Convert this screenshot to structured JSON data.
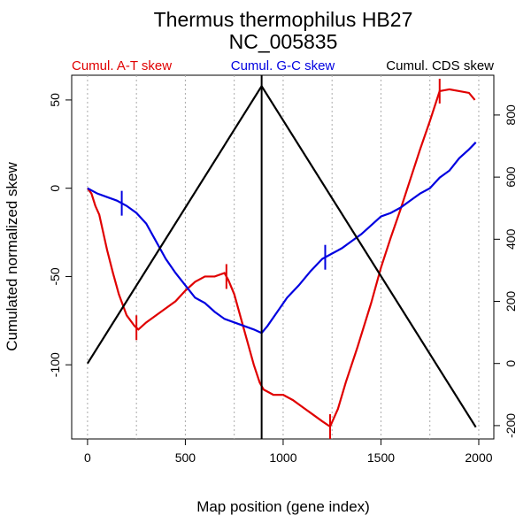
{
  "chart_data": {
    "type": "line",
    "title": "Thermus thermophilus HB27",
    "subtitle": "NC_005835",
    "x_label": "Map position (gene index)",
    "y_label": "Cumulated normalized skew",
    "xlim": [
      -81,
      2077
    ],
    "xticks": [
      0,
      500,
      1000,
      1500,
      2000
    ],
    "xgrid": [
      0,
      250,
      500,
      750,
      1000,
      1250,
      1500,
      1750,
      2000
    ],
    "ylim": [
      -142,
      64
    ],
    "yticks": [
      -100,
      -50,
      0,
      50
    ],
    "y2lim": [
      -243,
      928
    ],
    "y2ticks": [
      -200,
      0,
      200,
      400,
      600,
      800
    ],
    "series": [
      {
        "name": "Cumul. A-T skew",
        "color": "#e00000",
        "x": [
          0,
          20,
          40,
          60,
          80,
          100,
          130,
          160,
          200,
          240,
          260,
          300,
          350,
          400,
          450,
          500,
          550,
          600,
          650,
          700,
          720,
          750,
          800,
          850,
          880,
          900,
          950,
          1000,
          1050,
          1100,
          1150,
          1200,
          1240,
          1280,
          1320,
          1380,
          1450,
          1500,
          1550,
          1600,
          1650,
          1700,
          1750,
          1800,
          1850,
          1900,
          1950,
          1980
        ],
        "values": [
          0,
          -3,
          -10,
          -15,
          -25,
          -35,
          -48,
          -60,
          -72,
          -78,
          -80,
          -76,
          -72,
          -68,
          -64,
          -58,
          -53,
          -50,
          -50,
          -48,
          -52,
          -60,
          -80,
          -100,
          -110,
          -114,
          -117,
          -117,
          -120,
          -124,
          -128,
          -132,
          -135,
          -125,
          -110,
          -90,
          -65,
          -45,
          -28,
          -12,
          5,
          22,
          38,
          55,
          56,
          55,
          54,
          50
        ],
        "breakpoints": [
          250,
          710,
          1240,
          1800
        ]
      },
      {
        "name": "Cumul. G-C skew",
        "color": "#0000e0",
        "x": [
          0,
          50,
          100,
          150,
          200,
          250,
          300,
          350,
          400,
          450,
          500,
          550,
          600,
          650,
          700,
          750,
          800,
          850,
          890,
          920,
          970,
          1020,
          1080,
          1140,
          1200,
          1250,
          1300,
          1350,
          1400,
          1450,
          1500,
          1550,
          1600,
          1650,
          1700,
          1750,
          1800,
          1850,
          1900,
          1950,
          1985
        ],
        "values": [
          0,
          -3,
          -5,
          -7,
          -10,
          -14,
          -20,
          -30,
          -40,
          -48,
          -55,
          -62,
          -65,
          -70,
          -74,
          -76,
          -78,
          -80,
          -82,
          -78,
          -70,
          -62,
          -55,
          -47,
          -40,
          -37,
          -34,
          -30,
          -26,
          -21,
          -16,
          -14,
          -11,
          -7,
          -3,
          0,
          6,
          10,
          17,
          22,
          26
        ],
        "breakpoints": [
          175,
          1215
        ]
      },
      {
        "name": "Cumul. CDS skew",
        "color": "#000000",
        "axis": "y2",
        "x": [
          0,
          890,
          1985
        ],
        "values": [
          0,
          893,
          -205
        ],
        "breakpoints": [
          890
        ]
      }
    ]
  }
}
